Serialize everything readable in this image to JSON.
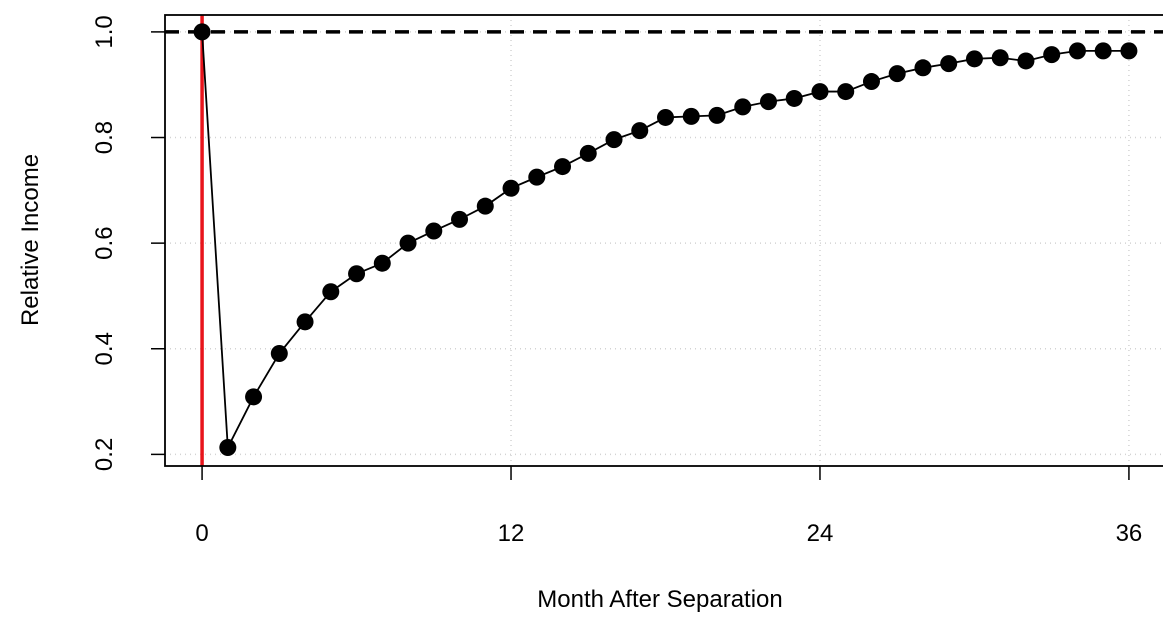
{
  "chart_data": {
    "type": "line",
    "x_label": "Month After Separation",
    "y_label": "Relative Income",
    "x": [
      0,
      1,
      2,
      3,
      4,
      5,
      6,
      7,
      8,
      9,
      10,
      11,
      12,
      13,
      14,
      15,
      16,
      17,
      18,
      19,
      20,
      21,
      22,
      23,
      24,
      25,
      26,
      27,
      28,
      29,
      30,
      31,
      32,
      33,
      34,
      35,
      36
    ],
    "series": [
      {
        "color": "#000000",
        "values": [
          1.0,
          0.213,
          0.309,
          0.391,
          0.451,
          0.508,
          0.542,
          0.562,
          0.6,
          0.623,
          0.645,
          0.67,
          0.704,
          0.725,
          0.745,
          0.77,
          0.796,
          0.813,
          0.838,
          0.84,
          0.842,
          0.858,
          0.868,
          0.874,
          0.887,
          0.887,
          0.906,
          0.921,
          0.932,
          0.94,
          0.949,
          0.951,
          0.945,
          0.957,
          0.964,
          0.964,
          0.964
        ]
      }
    ],
    "xlim": [
      -1.44,
      37.44
    ],
    "ylim": [
      0.178,
      1.032
    ],
    "xticks": [
      0,
      12,
      24,
      36
    ],
    "yticks": [
      0.2,
      0.4,
      0.6,
      0.8,
      {
        "value": 1,
        "label": "1.0"
      }
    ],
    "grid": true,
    "reference_lines": [
      {
        "axis": "y",
        "value": 1,
        "color": "#000000",
        "dashed": true
      },
      {
        "axis": "x",
        "value": 0,
        "color": "#e8141b",
        "dashed": false
      }
    ]
  }
}
